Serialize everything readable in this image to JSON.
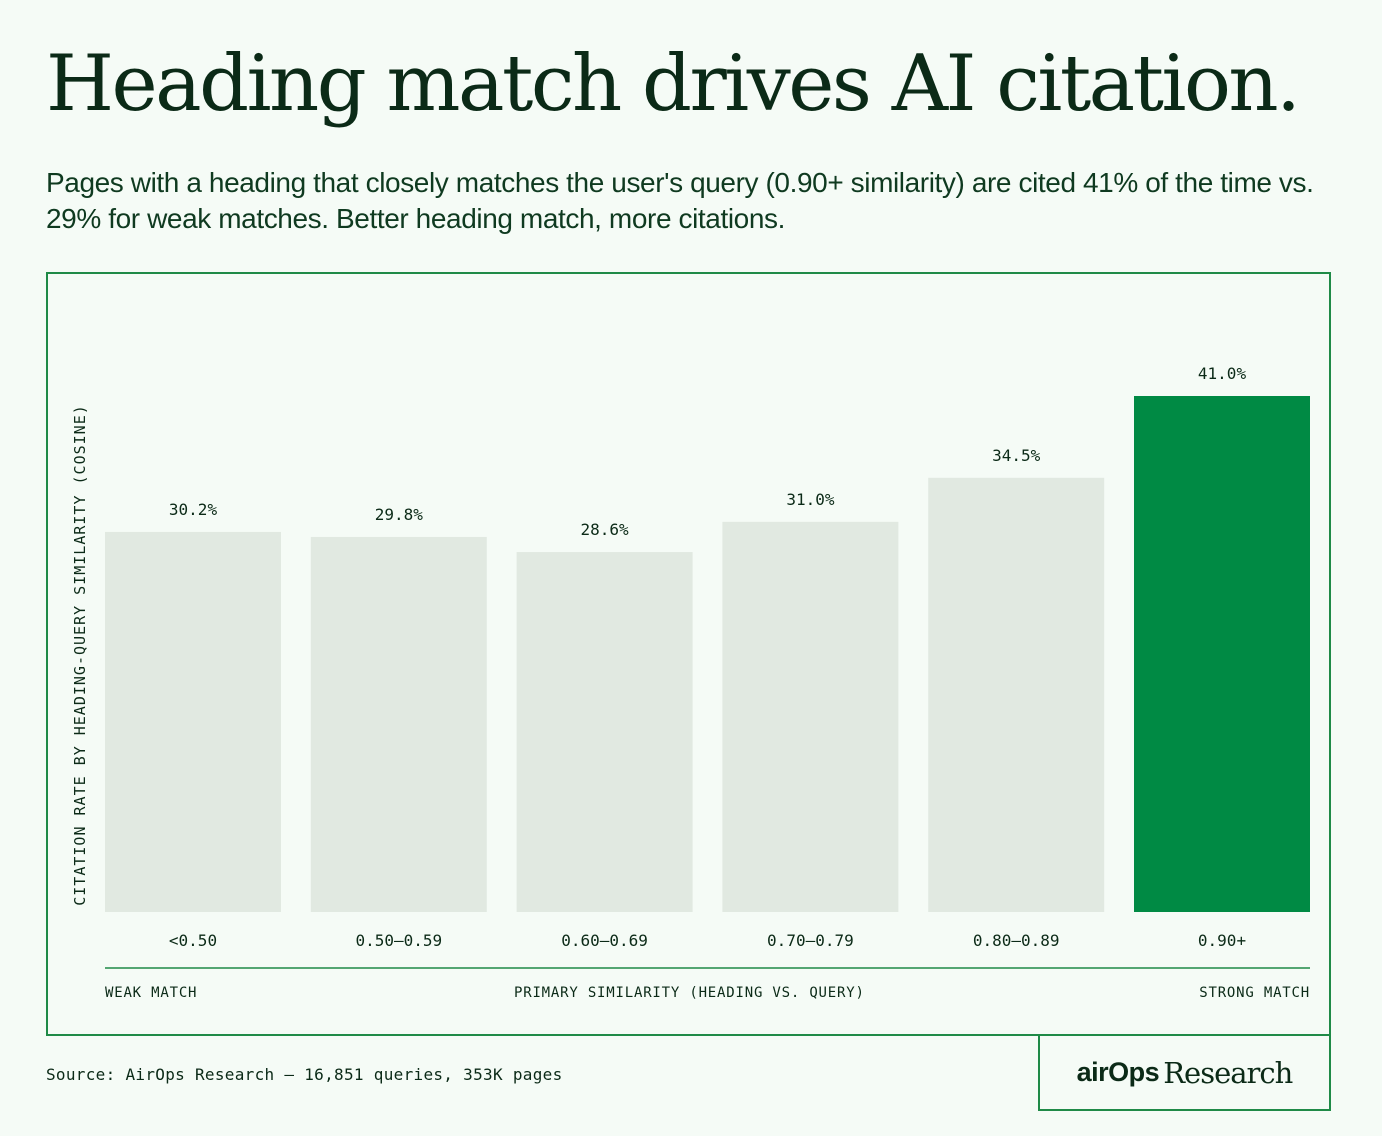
{
  "header": {
    "title": "Heading match drives AI citation.",
    "subtitle": "Pages with a heading that closely matches the user's query (0.90+ similarity) are cited 41% of the time vs. 29% for weak matches. Better heading match, more citations."
  },
  "axis_notes": {
    "left": "WEAK MATCH",
    "center": "PRIMARY SIMILARITY (HEADING VS. QUERY)",
    "right": "STRONG MATCH"
  },
  "footer": {
    "source": "Source: AirOps Research — 16,851 queries, 353K pages",
    "logo_brand": "airOps",
    "logo_word": "Research"
  },
  "colors": {
    "bar_default": "#e1e9e1",
    "bar_highlight": "#008a44",
    "frame": "#1f8a47",
    "text": "#0b2a17",
    "background": "#f5fbf6"
  },
  "chart_data": {
    "type": "bar",
    "title": "",
    "xlabel": "PRIMARY SIMILARITY (HEADING VS. QUERY)",
    "ylabel": "CITATION RATE BY HEADING-QUERY SIMILARITY (COSINE)",
    "categories": [
      "<0.50",
      "0.50–0.59",
      "0.60–0.69",
      "0.70–0.79",
      "0.80–0.89",
      "0.90+"
    ],
    "values": [
      30.2,
      29.8,
      28.6,
      31.0,
      34.5,
      41.0
    ],
    "value_labels": [
      "30.2%",
      "29.8%",
      "28.6%",
      "31.0%",
      "34.5%",
      "41.0%"
    ],
    "highlight_index": 5,
    "ylim": [
      0,
      41.0
    ],
    "grid": false,
    "legend": "none"
  }
}
